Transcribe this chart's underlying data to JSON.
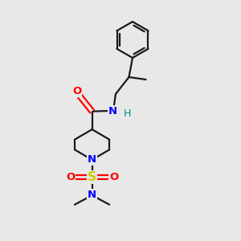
{
  "background_color": "#e8e8e8",
  "bond_color": "#1a1a1a",
  "nitrogen_color": "#0000ff",
  "oxygen_color": "#ff0000",
  "sulfur_color": "#cccc00",
  "hydrogen_color": "#008b8b",
  "figsize": [
    3.0,
    3.0
  ],
  "dpi": 100,
  "xlim": [
    0,
    10
  ],
  "ylim": [
    0,
    10
  ]
}
